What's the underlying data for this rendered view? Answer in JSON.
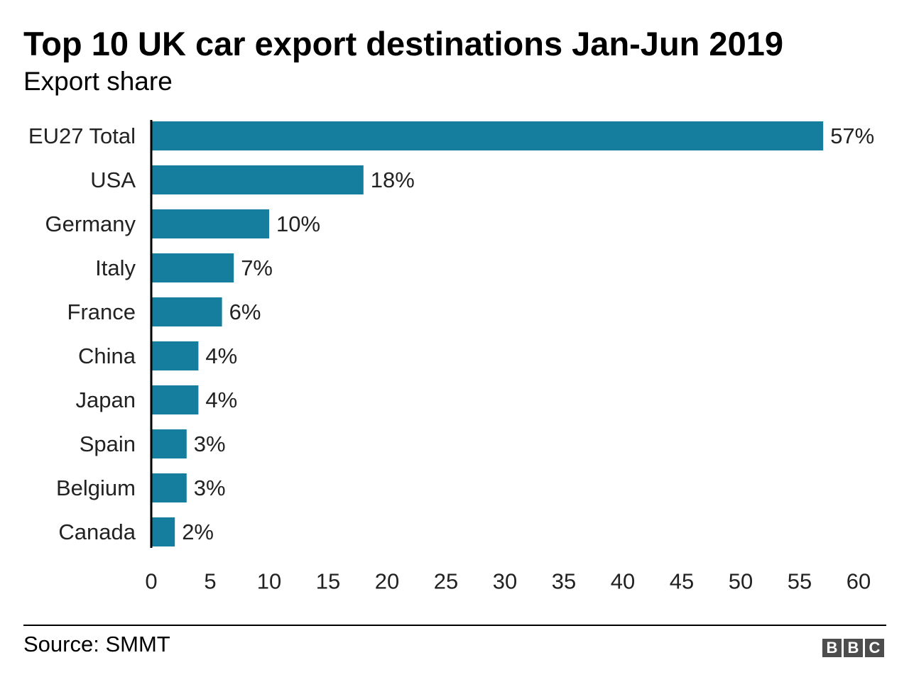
{
  "title": "Top 10 UK car export destinations Jan-Jun 2019",
  "subtitle": "Export share",
  "source": "Source: SMMT",
  "logo": [
    "B",
    "B",
    "C"
  ],
  "colors": {
    "bar": "#157e9e",
    "axis": "#000000",
    "text": "#222222"
  },
  "chart_data": {
    "type": "bar",
    "orientation": "horizontal",
    "title": "Top 10 UK car export destinations Jan-Jun 2019",
    "subtitle": "Export share",
    "categories": [
      "EU27 Total",
      "USA",
      "Germany",
      "Italy",
      "France",
      "China",
      "Japan",
      "Spain",
      "Belgium",
      "Canada"
    ],
    "values": [
      57,
      18,
      10,
      7,
      6,
      4,
      4,
      3,
      3,
      2
    ],
    "data_labels": [
      "57%",
      "18%",
      "10%",
      "7%",
      "6%",
      "4%",
      "4%",
      "3%",
      "3%",
      "2%"
    ],
    "xlim": [
      0,
      60
    ],
    "x_ticks": [
      0,
      5,
      10,
      15,
      20,
      25,
      30,
      35,
      40,
      45,
      50,
      55,
      60
    ],
    "xlabel": "",
    "ylabel": "",
    "grid": false,
    "legend": "none"
  }
}
